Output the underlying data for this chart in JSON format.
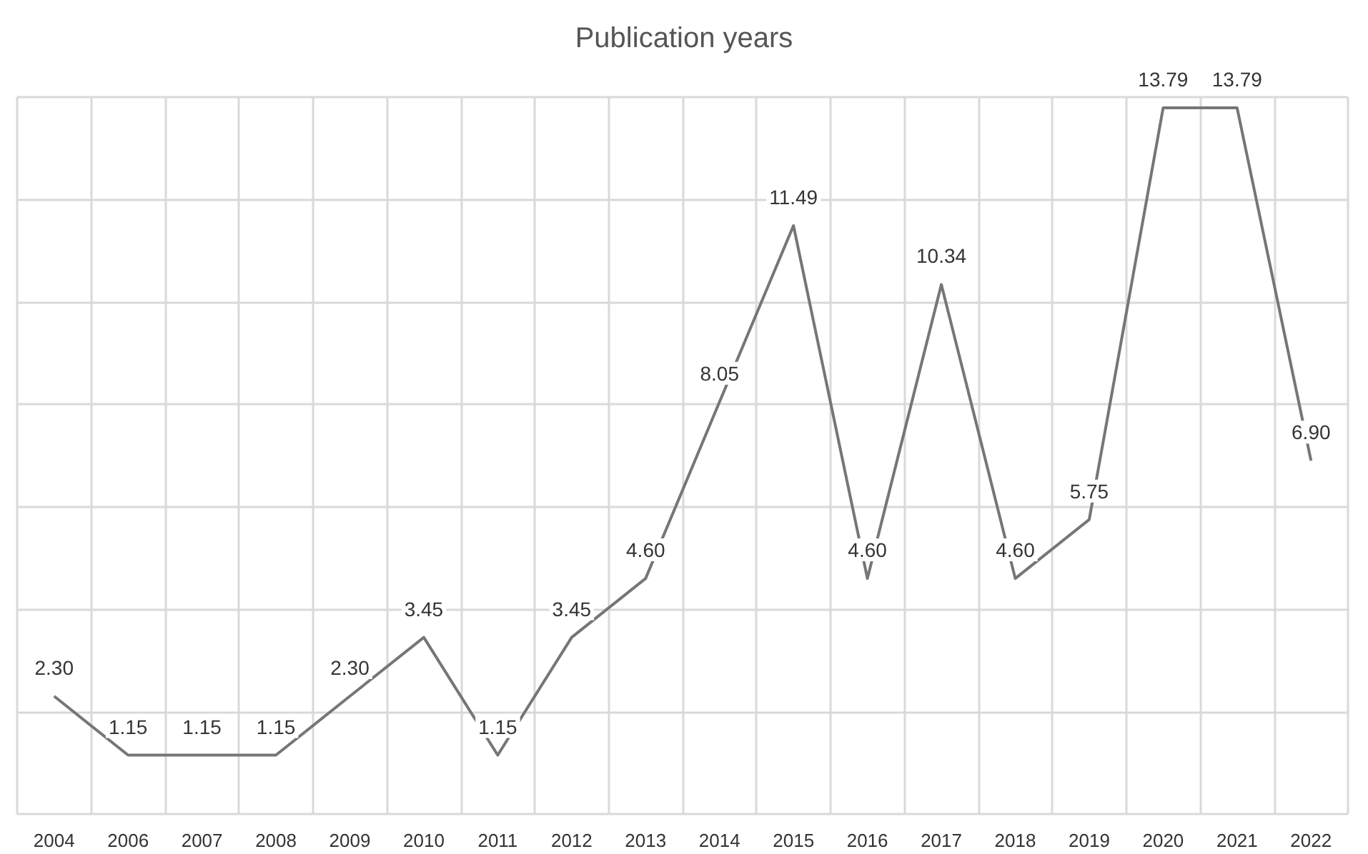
{
  "chart_data": {
    "type": "line",
    "title": "Publication years",
    "categories": [
      "2004",
      "2006",
      "2007",
      "2008",
      "2009",
      "2010",
      "2011",
      "2012",
      "2013",
      "2014",
      "2015",
      "2016",
      "2017",
      "2018",
      "2019",
      "2020",
      "2021",
      "2022"
    ],
    "series": [
      {
        "color": "#767676",
        "values": [
          2.3,
          1.15,
          1.15,
          1.15,
          2.3,
          3.45,
          1.15,
          3.45,
          4.6,
          8.05,
          11.49,
          4.6,
          10.34,
          4.6,
          5.75,
          13.79,
          13.79,
          6.9
        ],
        "value_labels": [
          "2.30",
          "1.15",
          "1.15",
          "1.15",
          "2.30",
          "3.45",
          "1.15",
          "3.45",
          "4.60",
          "8.05",
          "11.49",
          "4.60",
          "10.34",
          "4.60",
          "5.75",
          "13.79",
          "13.79",
          "6.90"
        ]
      }
    ],
    "grid": true,
    "tick_labels": "x",
    "marker": "none",
    "line_style": "solid"
  }
}
